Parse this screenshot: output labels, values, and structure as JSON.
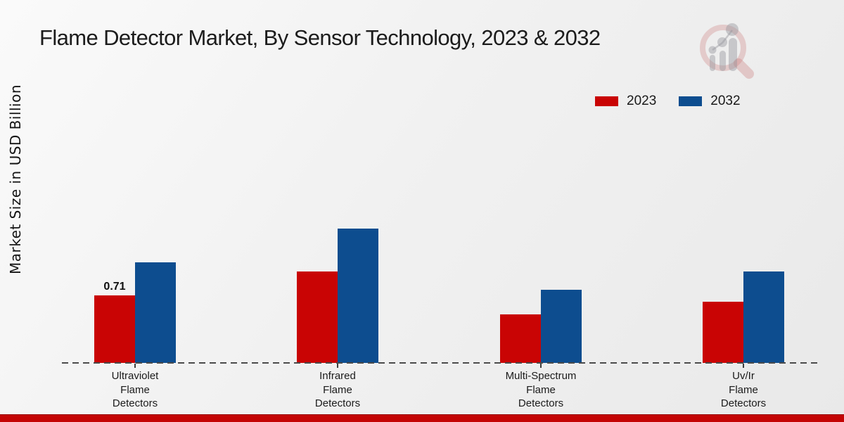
{
  "page": {
    "title": "Flame Detector Market, By Sensor Technology, 2023 & 2032"
  },
  "chart_data": {
    "type": "bar",
    "title": "Flame Detector Market, By Sensor Technology, 2023 & 2032",
    "xlabel": "",
    "ylabel": "Market Size in USD Billion",
    "ylim": [
      0,
      1.5
    ],
    "grid": false,
    "legend_position": "top-right",
    "baseline_style": "dashed",
    "categories": [
      "Ultraviolet Flame Detectors",
      "Infrared Flame Detectors",
      "Multi-Spectrum Flame Detectors",
      "Uv/Ir Flame Detectors"
    ],
    "category_label_lines": [
      [
        "Ultraviolet",
        "Flame",
        "Detectors"
      ],
      [
        "Infrared",
        "Flame",
        "Detectors"
      ],
      [
        "Multi-Spectrum",
        "Flame",
        "Detectors"
      ],
      [
        "Uv/Ir",
        "Flame",
        "Detectors"
      ]
    ],
    "series": [
      {
        "name": "2023",
        "color": "#c90404",
        "values": [
          0.71,
          0.96,
          0.51,
          0.64
        ]
      },
      {
        "name": "2032",
        "color": "#0d4d8f",
        "values": [
          1.06,
          1.41,
          0.77,
          0.96
        ]
      }
    ],
    "data_labels": [
      {
        "series": 0,
        "category": 0,
        "text": "0.71"
      }
    ]
  },
  "branding": {
    "logo_name": "market-research-future-watermark",
    "bottom_bar_color": "#c40404",
    "accent_red": "#c90404",
    "accent_blue": "#0d4d8f"
  }
}
